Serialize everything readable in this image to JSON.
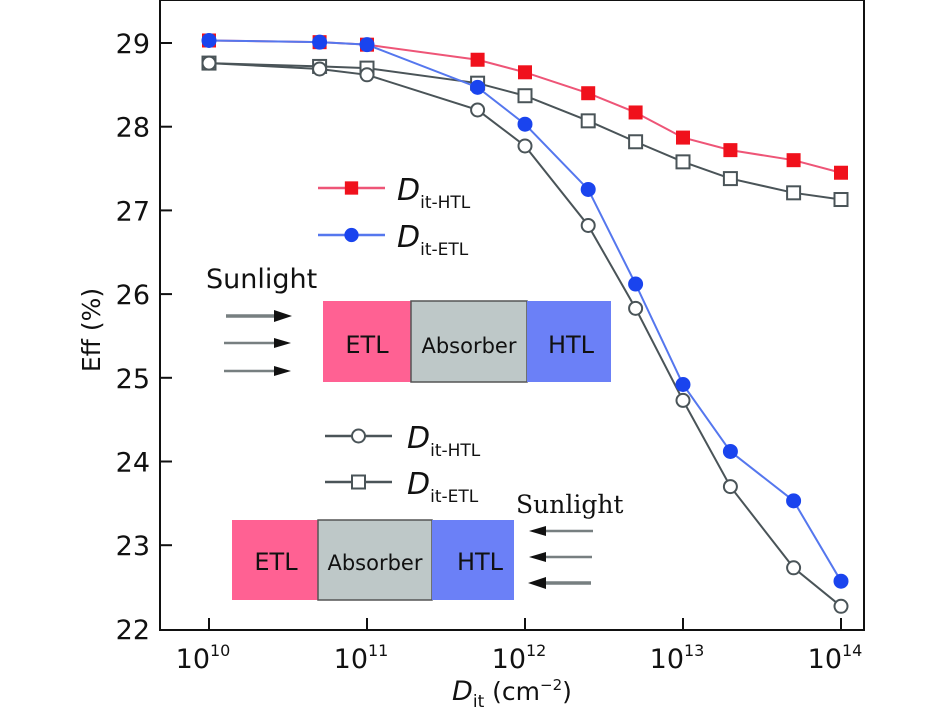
{
  "chart_data": {
    "type": "line",
    "title": "",
    "xlabel": "D_it (cm^-2)",
    "xlabel_main": "D",
    "xlabel_sub": "it",
    "xlabel_unit": " (cm",
    "xlabel_unit_sup": "−2",
    "xlabel_unit_close": ")",
    "ylabel": "Eff (%)",
    "xscale": "log",
    "xlim_log10": [
      9.7,
      14.15
    ],
    "ylim": [
      22,
      29.2
    ],
    "x_ticks": [
      {
        "base": "10",
        "exp": "10",
        "log": 10
      },
      {
        "base": "10",
        "exp": "11",
        "log": 11
      },
      {
        "base": "10",
        "exp": "12",
        "log": 12
      },
      {
        "base": "10",
        "exp": "13",
        "log": 13
      },
      {
        "base": "10",
        "exp": "14",
        "log": 14
      }
    ],
    "y_ticks": [
      22,
      23,
      24,
      25,
      26,
      27,
      28,
      29
    ],
    "grid": false,
    "x_log10": [
      10,
      10.7,
      11,
      11.7,
      12,
      12.4,
      12.7,
      13,
      13.3,
      13.7,
      14
    ],
    "series": [
      {
        "name": "D_it-HTL (illumination from ETL side)",
        "legend_main": "D",
        "legend_sub": "it-HTL",
        "legend_group": "top",
        "marker": "filled-square",
        "color": "#f0111c",
        "line_color": "#ee5577",
        "values": [
          29.03,
          29.01,
          28.98,
          28.8,
          28.65,
          28.4,
          28.17,
          27.87,
          27.72,
          27.6,
          27.45
        ]
      },
      {
        "name": "D_it-ETL (illumination from ETL side)",
        "legend_main": "D",
        "legend_sub": "it-ETL",
        "legend_group": "top",
        "marker": "filled-circle",
        "color": "#1a44ee",
        "line_color": "#5577ee",
        "values": [
          29.03,
          29.01,
          28.98,
          28.47,
          28.03,
          27.25,
          26.12,
          24.92,
          24.12,
          23.53,
          22.57
        ]
      },
      {
        "name": "D_it-HTL (illumination from HTL side)",
        "legend_main": "D",
        "legend_sub": "it-HTL",
        "legend_group": "bottom",
        "marker": "open-circle",
        "color": "#4a5458",
        "line_color": "#4a5458",
        "values": [
          28.76,
          28.69,
          28.62,
          28.2,
          27.77,
          26.82,
          25.83,
          24.73,
          23.7,
          22.73,
          22.27
        ]
      },
      {
        "name": "D_it-ETL (illumination from HTL side)",
        "legend_main": "D",
        "legend_sub": "it-ETL",
        "legend_group": "bottom",
        "marker": "open-square",
        "color": "#4a5458",
        "line_color": "#4a5458",
        "values": [
          28.76,
          28.72,
          28.7,
          28.52,
          28.37,
          28.07,
          27.82,
          27.58,
          27.38,
          27.21,
          27.13
        ]
      }
    ],
    "legend_placement": "center-left (inside)",
    "annotations": {
      "top_device": {
        "sunlight_label": "Sunlight",
        "sunlight_direction": "left-to-right",
        "layers": [
          "ETL",
          "Absorber",
          "HTL"
        ]
      },
      "bottom_device": {
        "sunlight_label": "Sunlight",
        "sunlight_direction": "right-to-left",
        "layers": [
          "ETL",
          "Absorber",
          "HTL"
        ]
      }
    }
  },
  "colors": {
    "etl": "#ff6193",
    "absorber": "#bec8c8",
    "htl": "#6b80f7",
    "axis": "#111111",
    "arrow": "#777f80"
  }
}
